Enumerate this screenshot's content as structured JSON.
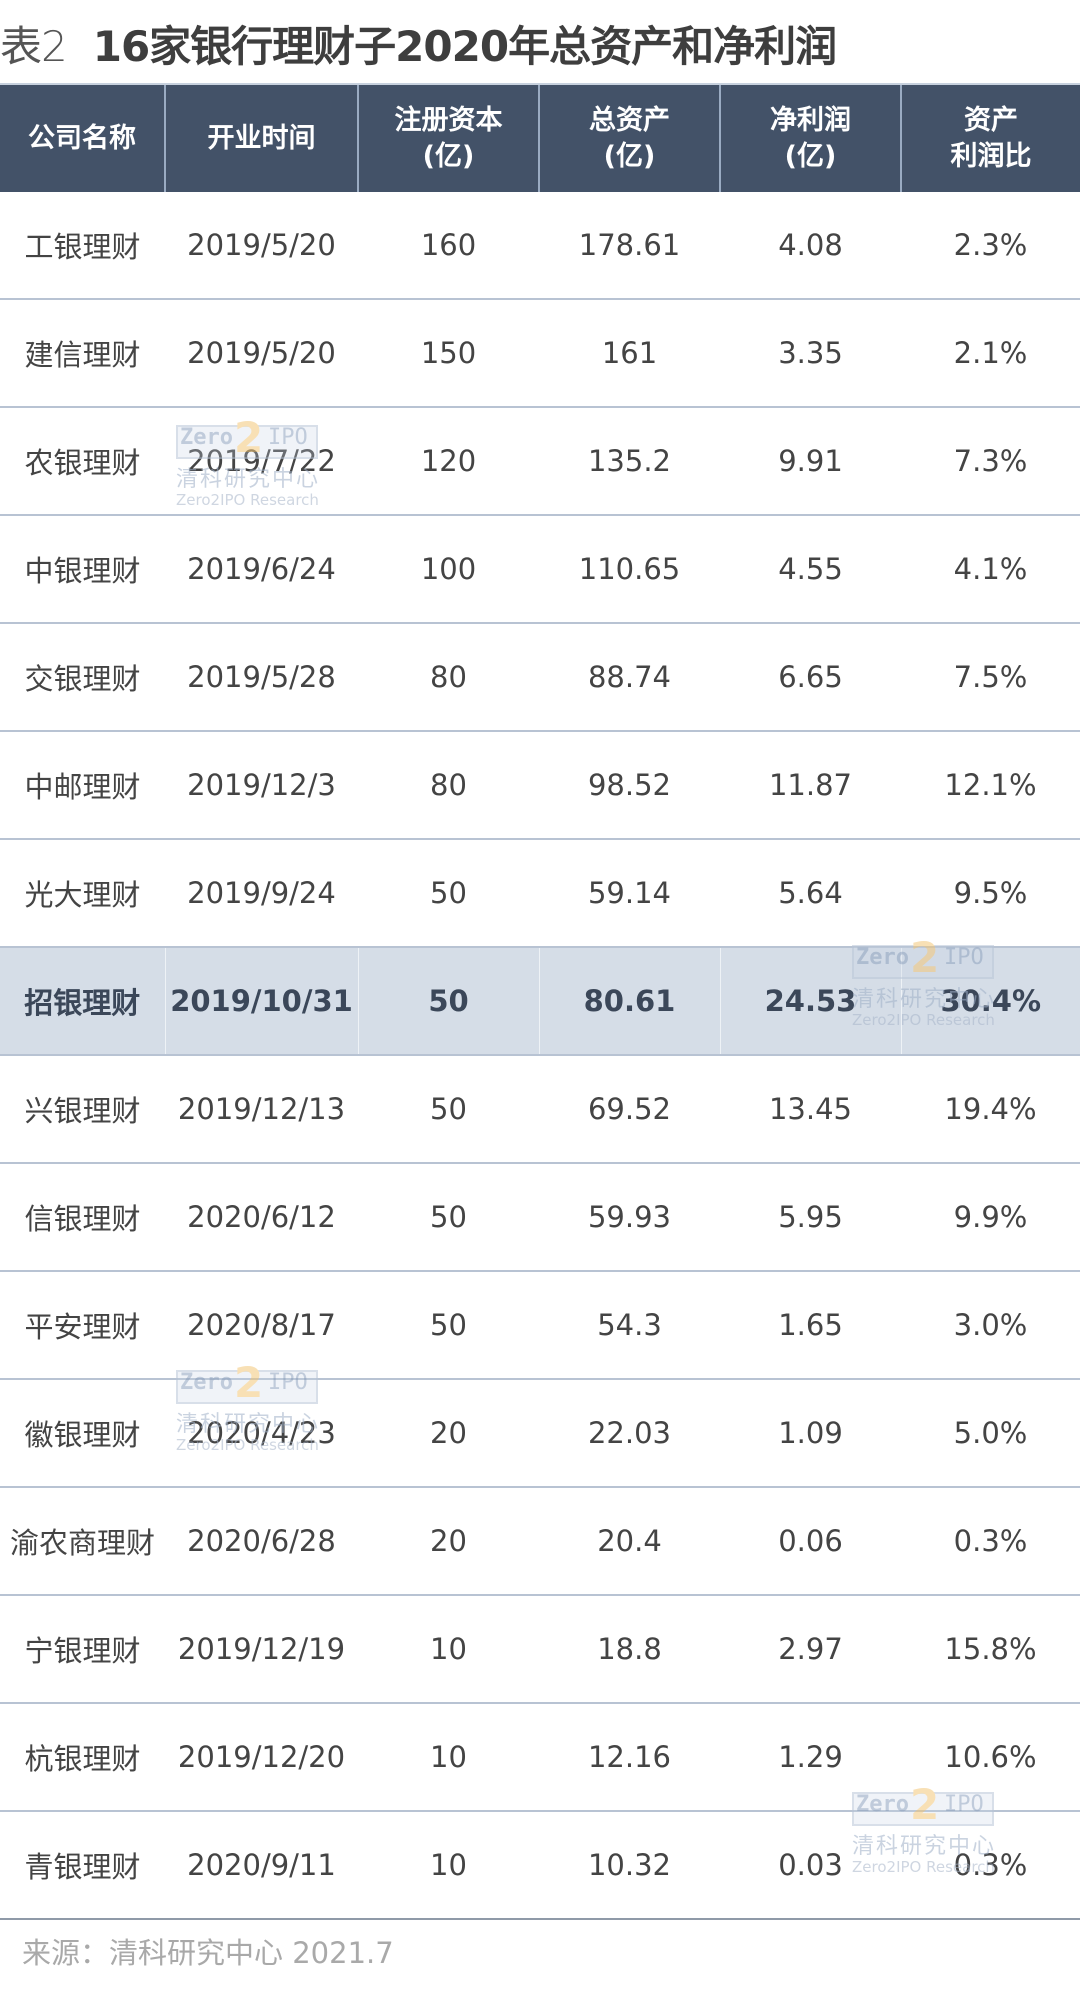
{
  "title": {
    "label": "表2",
    "text": "16家银行理财子2020年总资产和净利润"
  },
  "table": {
    "headers": [
      {
        "line1": "公司名称",
        "line2": ""
      },
      {
        "line1": "开业时间",
        "line2": ""
      },
      {
        "line1": "注册资本",
        "line2": "(亿)"
      },
      {
        "line1": "总资产",
        "line2": "(亿)"
      },
      {
        "line1": "净利润",
        "line2": "(亿)"
      },
      {
        "line1": "资产",
        "line2": "利润比"
      }
    ],
    "rows": [
      {
        "name": "工银理财",
        "opened": "2019/5/20",
        "capital": "160",
        "assets": "178.61",
        "profit": "4.08",
        "ratio": "2.3%"
      },
      {
        "name": "建信理财",
        "opened": "2019/5/20",
        "capital": "150",
        "assets": "161",
        "profit": "3.35",
        "ratio": "2.1%"
      },
      {
        "name": "农银理财",
        "opened": "2019/7/22",
        "capital": "120",
        "assets": "135.2",
        "profit": "9.91",
        "ratio": "7.3%"
      },
      {
        "name": "中银理财",
        "opened": "2019/6/24",
        "capital": "100",
        "assets": "110.65",
        "profit": "4.55",
        "ratio": "4.1%"
      },
      {
        "name": "交银理财",
        "opened": "2019/5/28",
        "capital": "80",
        "assets": "88.74",
        "profit": "6.65",
        "ratio": "7.5%"
      },
      {
        "name": "中邮理财",
        "opened": "2019/12/3",
        "capital": "80",
        "assets": "98.52",
        "profit": "11.87",
        "ratio": "12.1%"
      },
      {
        "name": "光大理财",
        "opened": "2019/9/24",
        "capital": "50",
        "assets": "59.14",
        "profit": "5.64",
        "ratio": "9.5%"
      },
      {
        "name": "招银理财",
        "opened": "2019/10/31",
        "capital": "50",
        "assets": "80.61",
        "profit": "24.53",
        "ratio": "30.4%",
        "highlight": true
      },
      {
        "name": "兴银理财",
        "opened": "2019/12/13",
        "capital": "50",
        "assets": "69.52",
        "profit": "13.45",
        "ratio": "19.4%"
      },
      {
        "name": "信银理财",
        "opened": "2020/6/12",
        "capital": "50",
        "assets": "59.93",
        "profit": "5.95",
        "ratio": "9.9%"
      },
      {
        "name": "平安理财",
        "opened": "2020/8/17",
        "capital": "50",
        "assets": "54.3",
        "profit": "1.65",
        "ratio": "3.0%"
      },
      {
        "name": "徽银理财",
        "opened": "2020/4/23",
        "capital": "20",
        "assets": "22.03",
        "profit": "1.09",
        "ratio": "5.0%"
      },
      {
        "name": "渝农商理财",
        "opened": "2020/6/28",
        "capital": "20",
        "assets": "20.4",
        "profit": "0.06",
        "ratio": "0.3%"
      },
      {
        "name": "宁银理财",
        "opened": "2019/12/19",
        "capital": "10",
        "assets": "18.8",
        "profit": "2.97",
        "ratio": "15.8%"
      },
      {
        "name": "杭银理财",
        "opened": "2019/12/20",
        "capital": "10",
        "assets": "12.16",
        "profit": "1.29",
        "ratio": "10.6%"
      },
      {
        "name": "青银理财",
        "opened": "2020/9/11",
        "capital": "10",
        "assets": "10.32",
        "profit": "0.03",
        "ratio": "0.3%"
      }
    ]
  },
  "watermark": {
    "logo_left": "Zero",
    "logo_mid": "2",
    "logo_right": "IPO",
    "cn": "清科研究中心",
    "en": "Zero2IPO Research"
  },
  "source": "来源：清科研究中心 2021.7",
  "colors": {
    "header_bg": "#435268",
    "highlight_bg": "#d5dde7",
    "row_divider": "#b8c3d3",
    "source_text": "#a9a9a9"
  }
}
